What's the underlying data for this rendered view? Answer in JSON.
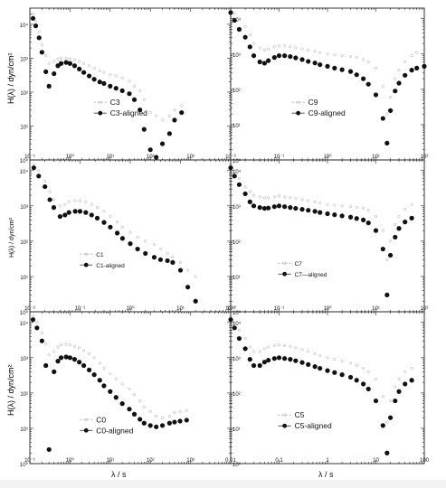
{
  "figure": {
    "ylabel": "H(λ) / dyn/cm²",
    "ylabel_small": "H(λ) / dyn/cm²",
    "xlabel": "λ / s"
  },
  "chart_data": [
    {
      "panel": "C3",
      "type": "scatter",
      "xscale": "log",
      "yscale": "log",
      "xlim": [
        0.01,
        1000
      ],
      "ylim": [
        1,
        30000
      ],
      "y_tick_labels": [
        "10⁴",
        "10³",
        "10²",
        "10¹",
        "10⁰"
      ],
      "x_tick_labels": [
        "10⁻¹",
        "10⁰",
        "10¹",
        "10²",
        "10³"
      ],
      "legend_position": "center",
      "series": [
        {
          "name": "C3",
          "marker": "open",
          "x": [
            0.012,
            0.014,
            0.017,
            0.02,
            0.025,
            0.03,
            0.04,
            0.05,
            0.06,
            0.08,
            0.1,
            0.13,
            0.17,
            0.22,
            0.3,
            0.4,
            0.55,
            0.7,
            1,
            1.4,
            2,
            3,
            4,
            5.5,
            7,
            10,
            14,
            20,
            30,
            40,
            60
          ],
          "y": [
            20000,
            12000,
            6000,
            2500,
            1200,
            700,
            800,
            950,
            1000,
            1000,
            950,
            900,
            800,
            700,
            600,
            500,
            420,
            380,
            330,
            300,
            260,
            210,
            150,
            110,
            60,
            25,
            20,
            15,
            20,
            30,
            40
          ]
        },
        {
          "name": "C3-aligned",
          "marker": "filled",
          "x": [
            0.012,
            0.014,
            0.017,
            0.02,
            0.025,
            0.03,
            0.04,
            0.05,
            0.06,
            0.08,
            0.1,
            0.13,
            0.17,
            0.22,
            0.3,
            0.4,
            0.55,
            0.7,
            1,
            1.4,
            2,
            3,
            4,
            5.5,
            7,
            10,
            14,
            20,
            30,
            40,
            60
          ],
          "y": [
            15000,
            9000,
            4000,
            1500,
            400,
            150,
            350,
            600,
            700,
            750,
            700,
            600,
            480,
            380,
            300,
            240,
            200,
            180,
            150,
            130,
            110,
            90,
            60,
            30,
            8,
            2,
            1.2,
            3,
            6,
            15,
            25
          ]
        }
      ]
    },
    {
      "panel": "C9",
      "type": "scatter",
      "xscale": "log",
      "yscale": "log",
      "xlim": [
        0.01,
        100
      ],
      "ylim": [
        1,
        20000
      ],
      "y_tick_labels": [
        "10⁴",
        "10³",
        "10²",
        "10¹",
        "10⁰"
      ],
      "x_tick_labels": [
        "10⁻²",
        "10⁻¹",
        "10⁰",
        "10¹",
        "10²"
      ],
      "legend_position": "center",
      "series": [
        {
          "name": "C9",
          "marker": "open",
          "x": [
            0.01,
            0.012,
            0.015,
            0.02,
            0.025,
            0.03,
            0.04,
            0.05,
            0.06,
            0.08,
            0.1,
            0.13,
            0.17,
            0.22,
            0.3,
            0.4,
            0.55,
            0.7,
            1,
            1.4,
            2,
            3,
            4,
            5.5,
            7,
            10,
            14,
            17,
            20,
            25,
            30,
            40,
            55,
            70,
            100
          ],
          "y": [
            20000,
            14000,
            10000,
            6000,
            3500,
            2000,
            1500,
            1300,
            1400,
            1600,
            1700,
            1700,
            1600,
            1500,
            1400,
            1300,
            1200,
            1100,
            1000,
            950,
            900,
            850,
            800,
            700,
            600,
            400,
            120,
            20,
            60,
            200,
            350,
            600,
            900,
            1100,
            1300
          ]
        },
        {
          "name": "C9-aligned",
          "marker": "filled",
          "x": [
            0.01,
            0.012,
            0.015,
            0.02,
            0.025,
            0.03,
            0.04,
            0.05,
            0.06,
            0.08,
            0.1,
            0.13,
            0.17,
            0.22,
            0.3,
            0.4,
            0.55,
            0.7,
            1,
            1.4,
            2,
            3,
            4,
            5.5,
            7,
            10,
            14,
            17,
            20,
            25,
            30,
            40,
            55,
            70,
            100
          ],
          "y": [
            15000,
            9000,
            5000,
            3000,
            1600,
            900,
            600,
            550,
            650,
            800,
            900,
            900,
            850,
            780,
            700,
            620,
            560,
            500,
            450,
            400,
            360,
            320,
            260,
            200,
            140,
            70,
            15,
            3,
            25,
            90,
            150,
            250,
            350,
            400,
            450
          ]
        }
      ]
    },
    {
      "panel": "C1",
      "type": "scatter",
      "xscale": "log",
      "yscale": "log",
      "xlim": [
        0.01,
        100
      ],
      "ylim": [
        1,
        20000
      ],
      "y_tick_labels": [
        "10⁴",
        "10³",
        "10²",
        "10¹",
        "10⁰"
      ],
      "x_tick_labels": [
        "10⁻²",
        "10⁻¹",
        "10⁰",
        "10¹",
        "10²"
      ],
      "legend_position": "lower-left",
      "series": [
        {
          "name": "C1",
          "marker": "open",
          "x": [
            0.012,
            0.015,
            0.02,
            0.025,
            0.03,
            0.04,
            0.05,
            0.06,
            0.08,
            0.1,
            0.13,
            0.17,
            0.22,
            0.3,
            0.4,
            0.55,
            0.7,
            1,
            1.4,
            2,
            3,
            4,
            5.5,
            7,
            10,
            14,
            20
          ],
          "y": [
            15000,
            10000,
            5000,
            2500,
            1500,
            1000,
            1100,
            1300,
            1400,
            1400,
            1300,
            1100,
            900,
            700,
            500,
            350,
            250,
            180,
            130,
            100,
            80,
            60,
            45,
            35,
            25,
            15,
            10
          ]
        },
        {
          "name": "C1-aligned",
          "marker": "filled",
          "x": [
            0.012,
            0.015,
            0.02,
            0.025,
            0.03,
            0.04,
            0.05,
            0.06,
            0.08,
            0.1,
            0.13,
            0.17,
            0.22,
            0.3,
            0.4,
            0.55,
            0.7,
            1,
            1.4,
            2,
            3,
            4,
            5.5,
            7,
            10,
            14,
            20
          ],
          "y": [
            12000,
            7000,
            3500,
            1500,
            900,
            500,
            550,
            650,
            700,
            700,
            650,
            550,
            450,
            340,
            250,
            170,
            120,
            85,
            60,
            45,
            35,
            30,
            28,
            25,
            15,
            5,
            2
          ]
        }
      ]
    },
    {
      "panel": "C7",
      "type": "scatter",
      "xscale": "log",
      "yscale": "log",
      "xlim": [
        0.01,
        100
      ],
      "ylim": [
        1,
        20000
      ],
      "y_tick_labels": [
        "10⁴",
        "10³",
        "10²",
        "10¹",
        "10⁰"
      ],
      "x_tick_labels": [
        "10⁻²",
        "10⁻¹",
        "10⁰",
        "10¹",
        "10²"
      ],
      "legend_position": "lower-right",
      "series": [
        {
          "name": "C7",
          "marker": "open",
          "x": [
            0.01,
            0.012,
            0.015,
            0.02,
            0.025,
            0.03,
            0.04,
            0.05,
            0.06,
            0.08,
            0.1,
            0.13,
            0.17,
            0.22,
            0.3,
            0.4,
            0.55,
            0.7,
            1,
            1.4,
            2,
            3,
            4,
            5.5,
            7,
            10,
            14,
            17,
            20,
            25,
            30,
            40,
            55
          ],
          "y": [
            15000,
            10000,
            6000,
            3500,
            2500,
            2000,
            1800,
            1700,
            1700,
            1800,
            1900,
            1800,
            1700,
            1600,
            1500,
            1400,
            1300,
            1200,
            1100,
            1050,
            1000,
            950,
            900,
            850,
            750,
            500,
            200,
            30,
            100,
            300,
            500,
            800,
            1100
          ]
        },
        {
          "name": "C7—aligned",
          "marker": "filled",
          "x": [
            0.01,
            0.012,
            0.015,
            0.02,
            0.025,
            0.03,
            0.04,
            0.05,
            0.06,
            0.08,
            0.1,
            0.13,
            0.17,
            0.22,
            0.3,
            0.4,
            0.55,
            0.7,
            1,
            1.4,
            2,
            3,
            4,
            5.5,
            7,
            10,
            14,
            17,
            20,
            25,
            30,
            40,
            55
          ],
          "y": [
            12000,
            7000,
            4000,
            2200,
            1300,
            1000,
            900,
            850,
            870,
            950,
            1000,
            950,
            900,
            850,
            800,
            750,
            700,
            650,
            600,
            560,
            520,
            480,
            440,
            400,
            330,
            200,
            60,
            3,
            40,
            130,
            230,
            350,
            450
          ]
        }
      ]
    },
    {
      "panel": "C0",
      "type": "scatter",
      "xscale": "log",
      "yscale": "log",
      "xlim": [
        0.01,
        1000
      ],
      "ylim": [
        1,
        20000
      ],
      "y_tick_labels": [
        "10⁴",
        "10³",
        "10²",
        "10¹",
        "10⁰"
      ],
      "x_tick_labels": [
        "10⁻¹",
        "10⁰",
        "10¹",
        "10²",
        "10³"
      ],
      "legend_position": "lower-center",
      "series": [
        {
          "name": "C0",
          "marker": "open",
          "x": [
            0.012,
            0.015,
            0.02,
            0.025,
            0.03,
            0.04,
            0.05,
            0.06,
            0.08,
            0.1,
            0.13,
            0.17,
            0.22,
            0.3,
            0.4,
            0.55,
            0.7,
            1,
            1.4,
            2,
            3,
            4,
            5.5,
            7,
            10,
            14,
            20,
            30,
            40,
            55,
            80
          ],
          "y": [
            15000,
            10000,
            5000,
            2500,
            1200,
            1500,
            2000,
            2300,
            2400,
            2300,
            2100,
            1900,
            1600,
            1300,
            1000,
            700,
            500,
            350,
            250,
            180,
            130,
            90,
            60,
            40,
            30,
            22,
            20,
            22,
            28,
            30,
            32
          ]
        },
        {
          "name": "C0-aligned",
          "marker": "filled",
          "x": [
            0.012,
            0.015,
            0.02,
            0.025,
            0.03,
            0.04,
            0.05,
            0.06,
            0.08,
            0.1,
            0.13,
            0.17,
            0.22,
            0.3,
            0.4,
            0.55,
            0.7,
            1,
            1.4,
            2,
            3,
            4,
            5.5,
            7,
            10,
            14,
            20,
            30,
            40,
            55,
            80
          ],
          "y": [
            12000,
            7000,
            3000,
            600,
            2.5,
            400,
            800,
            1000,
            1050,
            1000,
            900,
            750,
            600,
            450,
            330,
            230,
            160,
            110,
            75,
            50,
            35,
            25,
            18,
            14,
            12,
            11,
            12,
            14,
            15,
            16,
            17
          ]
        }
      ]
    },
    {
      "panel": "C5",
      "type": "scatter",
      "xscale": "log",
      "yscale": "log",
      "xlim": [
        0.01,
        100
      ],
      "ylim": [
        1,
        20000
      ],
      "y_tick_labels": [
        "10⁴",
        "10³",
        "10²",
        "10¹",
        "10⁰"
      ],
      "x_tick_labels": [
        "0.01",
        "0.1",
        "1",
        "10",
        "100"
      ],
      "legend_position": "lower-right",
      "series": [
        {
          "name": "C5",
          "marker": "open",
          "x": [
            0.01,
            0.012,
            0.015,
            0.02,
            0.025,
            0.03,
            0.04,
            0.05,
            0.06,
            0.08,
            0.1,
            0.13,
            0.17,
            0.22,
            0.3,
            0.4,
            0.55,
            0.7,
            1,
            1.4,
            2,
            3,
            4,
            5.5,
            7,
            10,
            14,
            17,
            20,
            25,
            30,
            40,
            55
          ],
          "y": [
            15000,
            10000,
            6000,
            3500,
            2000,
            1500,
            1500,
            1800,
            2000,
            2200,
            2300,
            2200,
            2100,
            1900,
            1700,
            1500,
            1300,
            1150,
            1000,
            900,
            800,
            700,
            600,
            500,
            400,
            250,
            80,
            15,
            60,
            150,
            250,
            400,
            500
          ]
        },
        {
          "name": "C5-aligned",
          "marker": "filled",
          "x": [
            0.01,
            0.012,
            0.015,
            0.02,
            0.025,
            0.03,
            0.04,
            0.05,
            0.06,
            0.08,
            0.1,
            0.13,
            0.17,
            0.22,
            0.3,
            0.4,
            0.55,
            0.7,
            1,
            1.4,
            2,
            3,
            4,
            5.5,
            7,
            10,
            14,
            17,
            20,
            25,
            30,
            40,
            55
          ],
          "y": [
            12000,
            7000,
            3500,
            1800,
            900,
            600,
            600,
            750,
            850,
            950,
            1000,
            950,
            900,
            820,
            730,
            640,
            560,
            500,
            430,
            380,
            330,
            280,
            230,
            180,
            130,
            60,
            12,
            2,
            20,
            60,
            110,
            180,
            230
          ]
        }
      ]
    }
  ]
}
